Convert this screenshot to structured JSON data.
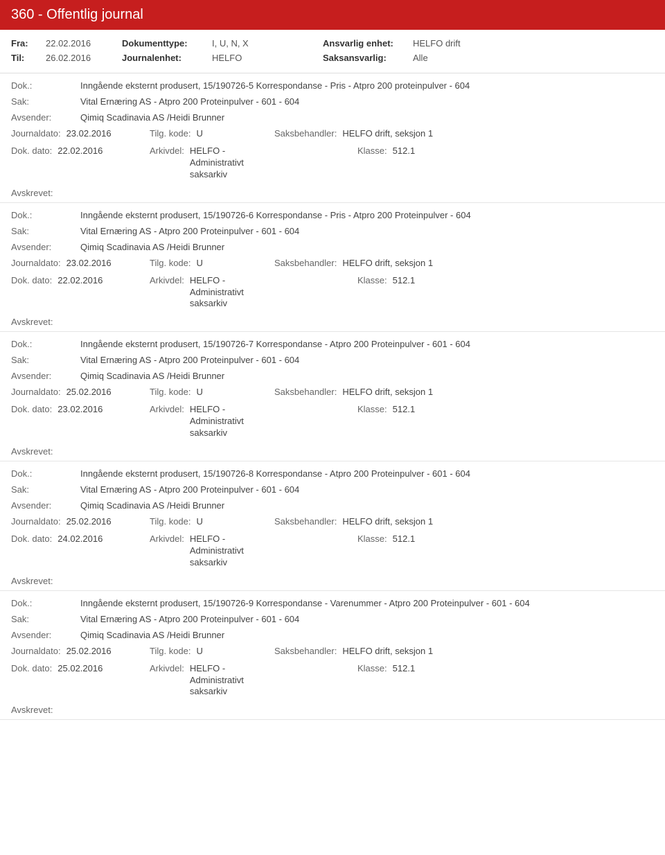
{
  "header": {
    "title": "360 - Offentlig journal"
  },
  "meta": {
    "fra_label": "Fra:",
    "fra_value": "22.02.2016",
    "til_label": "Til:",
    "til_value": "26.02.2016",
    "doktype_label": "Dokumenttype:",
    "doktype_value": "I, U, N, X",
    "journalenhet_label": "Journalenhet:",
    "journalenhet_value": "HELFO",
    "ansvarlig_label": "Ansvarlig enhet:",
    "ansvarlig_value": "HELFO drift",
    "saksansvarlig_label": "Saksansvarlig:",
    "saksansvarlig_value": "Alle"
  },
  "labels": {
    "dok": "Dok.:",
    "sak": "Sak:",
    "avsender": "Avsender:",
    "journaldato": "Journaldato:",
    "tilgkode": "Tilg. kode:",
    "saksbehandler": "Saksbehandler:",
    "dokdato": "Dok. dato:",
    "arkivdel": "Arkivdel:",
    "klasse": "Klasse:",
    "avskrevet": "Avskrevet:"
  },
  "common": {
    "sak_text": "Vital Ernæring AS - Atpro 200 Proteinpulver - 601 - 604",
    "avsender_text": "Qimiq Scadinavia AS /Heidi Brunner",
    "tilgkode_value": "U",
    "saksbehandler_value": "HELFO drift, seksjon 1",
    "arkivdel_value": "HELFO - Administrativt saksarkiv",
    "klasse_value": "512.1"
  },
  "entries": [
    {
      "dok": "Inngående eksternt produsert, 15/190726-5 Korrespondanse - Pris - Atpro 200 proteinpulver - 604",
      "journaldato": "23.02.2016",
      "dokdato": "22.02.2016"
    },
    {
      "dok": "Inngående eksternt produsert, 15/190726-6 Korrespondanse - Pris - Atpro 200 Proteinpulver - 604",
      "journaldato": "23.02.2016",
      "dokdato": "22.02.2016"
    },
    {
      "dok": "Inngående eksternt produsert, 15/190726-7 Korrespondanse - Atpro 200 Proteinpulver - 601 - 604",
      "journaldato": "25.02.2016",
      "dokdato": "23.02.2016"
    },
    {
      "dok": "Inngående eksternt produsert, 15/190726-8 Korrespondanse - Atpro 200 Proteinpulver - 601 - 604",
      "journaldato": "25.02.2016",
      "dokdato": "24.02.2016"
    },
    {
      "dok": "Inngående eksternt produsert, 15/190726-9 Korrespondanse - Varenummer - Atpro 200 Proteinpulver - 601 - 604",
      "journaldato": "25.02.2016",
      "dokdato": "25.02.2016"
    }
  ]
}
